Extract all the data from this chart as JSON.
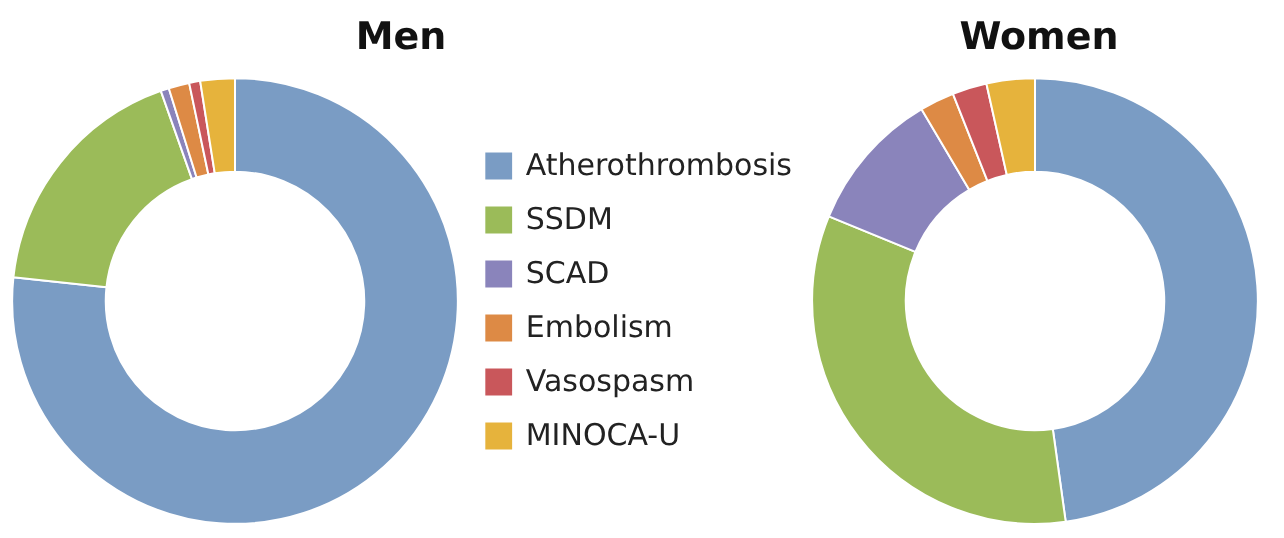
{
  "chart_data": [
    {
      "type": "donut",
      "title": "Men",
      "categories": [
        "Atherothrombosis",
        "SSDM",
        "SCAD",
        "Embolism",
        "Vasospasm",
        "MINOCA-U"
      ],
      "values": [
        76.7,
        17.9,
        0.6,
        1.5,
        0.8,
        2.5
      ],
      "colors": [
        "#7a9cc4",
        "#9bbb59",
        "#8a84bb",
        "#dd8a45",
        "#c9575b",
        "#e6b33c"
      ],
      "legend": "right"
    },
    {
      "type": "donut",
      "title": "Women",
      "categories": [
        null,
        null,
        null,
        null,
        null,
        null
      ],
      "values": [
        47.8,
        33.4,
        10.3,
        2.5,
        2.5,
        3.5
      ],
      "colors": [
        "#7a9cc4",
        "#9bbb59",
        "#8a84bb",
        "#dd8a45",
        "#c9575b",
        "#e6b33c"
      ]
    }
  ]
}
